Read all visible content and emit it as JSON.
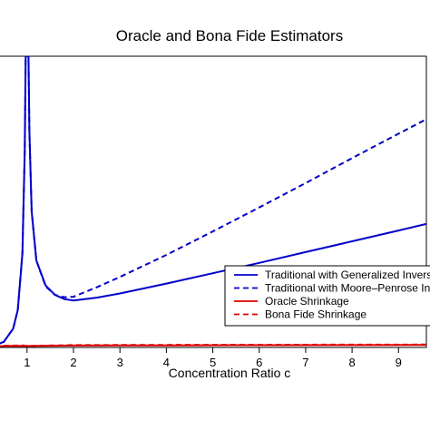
{
  "chart_data": {
    "type": "line",
    "title": "Oracle and Bona Fide Estimators",
    "xlabel": "Concentration Ratio c",
    "ylabel": "",
    "xlim": [
      0.3,
      9.6
    ],
    "ylim": [
      0,
      6.2
    ],
    "x_ticks": [
      1,
      2,
      3,
      4,
      5,
      6,
      7,
      8,
      9
    ],
    "grid": false,
    "legend_position": "right",
    "series": [
      {
        "name": "Traditional with Generalized Inverse",
        "color": "#0000cc",
        "style": "solid",
        "points": [
          [
            0.3,
            0.04
          ],
          [
            0.5,
            0.12
          ],
          [
            0.7,
            0.4
          ],
          [
            0.8,
            0.8
          ],
          [
            0.9,
            2.0
          ],
          [
            0.95,
            4.2
          ],
          [
            0.97,
            6.2
          ],
          [
            1.03,
            6.2
          ],
          [
            1.05,
            4.6
          ],
          [
            1.1,
            2.9
          ],
          [
            1.2,
            1.85
          ],
          [
            1.4,
            1.32
          ],
          [
            1.6,
            1.12
          ],
          [
            1.8,
            1.03
          ],
          [
            2.0,
            1.0
          ],
          [
            2.5,
            1.06
          ],
          [
            3,
            1.15
          ],
          [
            4,
            1.36
          ],
          [
            5,
            1.58
          ],
          [
            6,
            1.8
          ],
          [
            7,
            2.03
          ],
          [
            8,
            2.26
          ],
          [
            9,
            2.49
          ],
          [
            9.6,
            2.63
          ]
        ]
      },
      {
        "name": "Traditional with Moore–Penrose Inverse",
        "color": "#0000cc",
        "style": "dashed",
        "points": [
          [
            0.3,
            0.04
          ],
          [
            0.5,
            0.12
          ],
          [
            0.7,
            0.4
          ],
          [
            0.8,
            0.8
          ],
          [
            0.9,
            2.0
          ],
          [
            0.95,
            4.2
          ],
          [
            0.97,
            6.2
          ],
          [
            1.03,
            6.2
          ],
          [
            1.05,
            4.6
          ],
          [
            1.1,
            2.9
          ],
          [
            1.2,
            1.85
          ],
          [
            1.4,
            1.3
          ],
          [
            1.6,
            1.12
          ],
          [
            1.8,
            1.07
          ],
          [
            2.0,
            1.08
          ],
          [
            2.5,
            1.28
          ],
          [
            3,
            1.5
          ],
          [
            4,
            1.97
          ],
          [
            5,
            2.47
          ],
          [
            6,
            2.98
          ],
          [
            7,
            3.5
          ],
          [
            8,
            4.03
          ],
          [
            9,
            4.55
          ],
          [
            9.6,
            4.86
          ]
        ]
      },
      {
        "name": "Oracle Shrinkage",
        "color": "#dd0000",
        "style": "solid",
        "points": [
          [
            0.3,
            0.02
          ],
          [
            0.5,
            0.03
          ],
          [
            0.9,
            0.035
          ],
          [
            1.0,
            0.03
          ],
          [
            2,
            0.04
          ],
          [
            4,
            0.045
          ],
          [
            6,
            0.048
          ],
          [
            8,
            0.05
          ],
          [
            9.6,
            0.052
          ]
        ]
      },
      {
        "name": "Bona Fide Shrinkage",
        "color": "#dd0000",
        "style": "dashed",
        "points": [
          [
            0.3,
            0.02
          ],
          [
            0.5,
            0.035
          ],
          [
            0.9,
            0.045
          ],
          [
            1.0,
            0.03
          ],
          [
            2,
            0.05
          ],
          [
            4,
            0.055
          ],
          [
            6,
            0.058
          ],
          [
            8,
            0.06
          ],
          [
            9.6,
            0.062
          ]
        ]
      }
    ]
  }
}
